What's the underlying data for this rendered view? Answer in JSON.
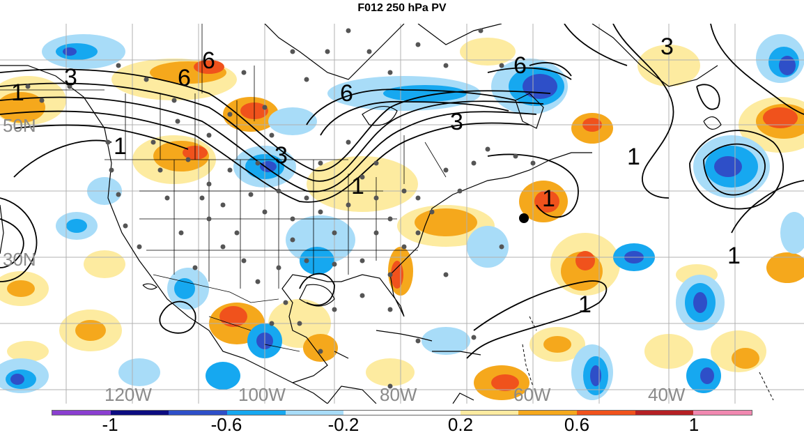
{
  "title": "F012 250 hPa PV",
  "longitude_labels": [
    "120W",
    "100W",
    "80W",
    "60W",
    "40W"
  ],
  "latitude_labels": [
    "50N",
    "30N"
  ],
  "contour_labels": [
    "3",
    "6",
    "6",
    "6",
    "6",
    "3",
    "1",
    "3",
    "1",
    "1",
    "1",
    "1",
    "1",
    "3",
    "1"
  ],
  "colorbar": {
    "colors": [
      "#8a3fd0",
      "#0c0c80",
      "#2e4fc8",
      "#16a8f0",
      "#a8dcf8",
      "#ffffff",
      "#ffffff",
      "#fdeba0",
      "#f5a81c",
      "#f0521c",
      "#b52024",
      "#f088b0"
    ],
    "tick_labels": [
      "-1",
      "-0.6",
      "-0.2",
      "0.2",
      "0.6",
      "1"
    ]
  }
}
